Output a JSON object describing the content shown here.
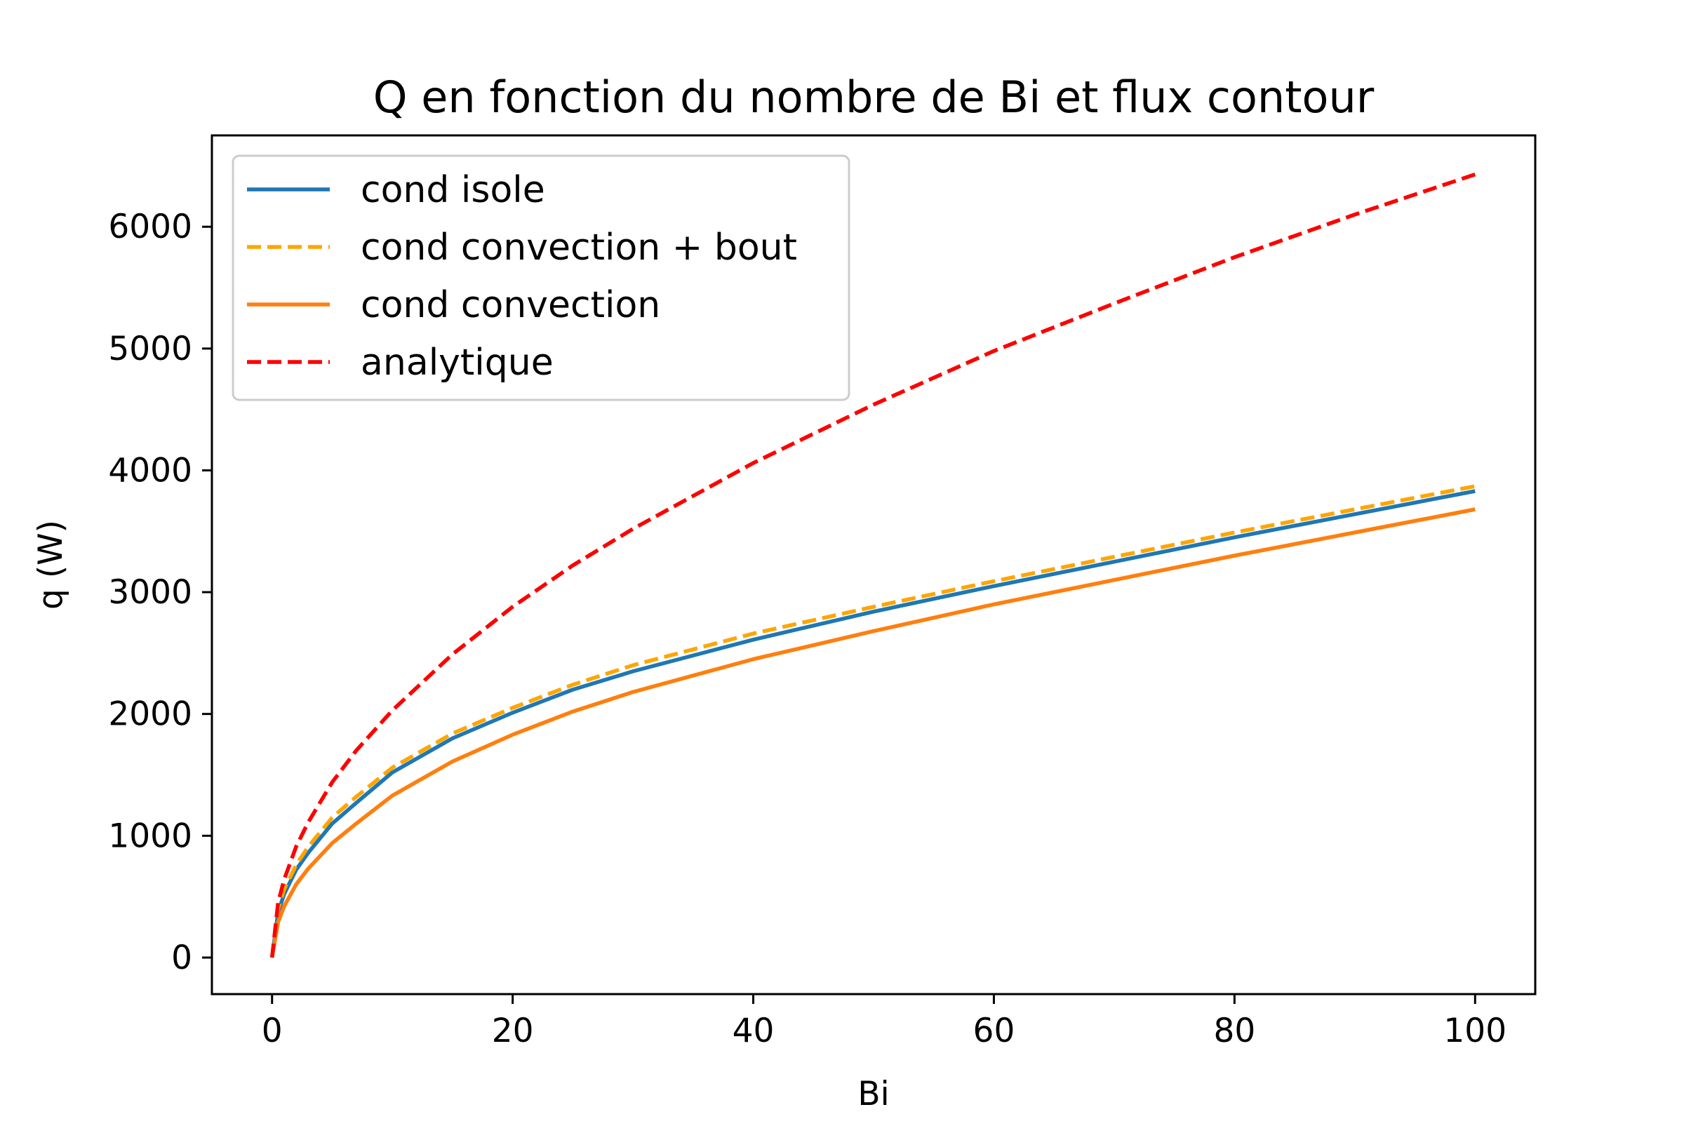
{
  "chart_data": {
    "type": "line",
    "title": "Q en fonction du nombre de Bi et flux contour",
    "xlabel": "Bi",
    "ylabel": "q (W)",
    "xlim": [
      -5,
      105
    ],
    "ylim": [
      -300,
      6750
    ],
    "xticks": [
      0,
      20,
      40,
      60,
      80,
      100
    ],
    "yticks": [
      0,
      1000,
      2000,
      3000,
      4000,
      5000,
      6000
    ],
    "grid": false,
    "legend_position": "upper left",
    "x": [
      0,
      0.5,
      1,
      2,
      3,
      5,
      7,
      10,
      15,
      20,
      25,
      30,
      40,
      50,
      60,
      70,
      80,
      90,
      100
    ],
    "series": [
      {
        "name": "cond isole",
        "color": "#1f77b4",
        "dash": "solid",
        "values": [
          0,
          370,
          520,
          720,
          860,
          1100,
          1270,
          1520,
          1800,
          2010,
          2200,
          2350,
          2610,
          2840,
          3050,
          3250,
          3450,
          3640,
          3830
        ]
      },
      {
        "name": "cond convection + bout",
        "color": "#ffa500",
        "dash": "dashed",
        "values": [
          0,
          400,
          560,
          760,
          910,
          1150,
          1320,
          1560,
          1840,
          2050,
          2240,
          2400,
          2660,
          2880,
          3090,
          3290,
          3490,
          3680,
          3870
        ]
      },
      {
        "name": "cond convection",
        "color": "#ff7f0e",
        "dash": "solid",
        "values": [
          0,
          290,
          420,
          600,
          730,
          940,
          1100,
          1330,
          1610,
          1830,
          2020,
          2180,
          2450,
          2680,
          2900,
          3100,
          3300,
          3490,
          3680
        ]
      },
      {
        "name": "analytique",
        "color": "#ff0000",
        "dash": "dashed",
        "values": [
          0,
          450,
          640,
          910,
          1110,
          1440,
          1700,
          2030,
          2490,
          2880,
          3220,
          3520,
          4060,
          4540,
          4980,
          5370,
          5750,
          6100,
          6430
        ]
      }
    ]
  }
}
